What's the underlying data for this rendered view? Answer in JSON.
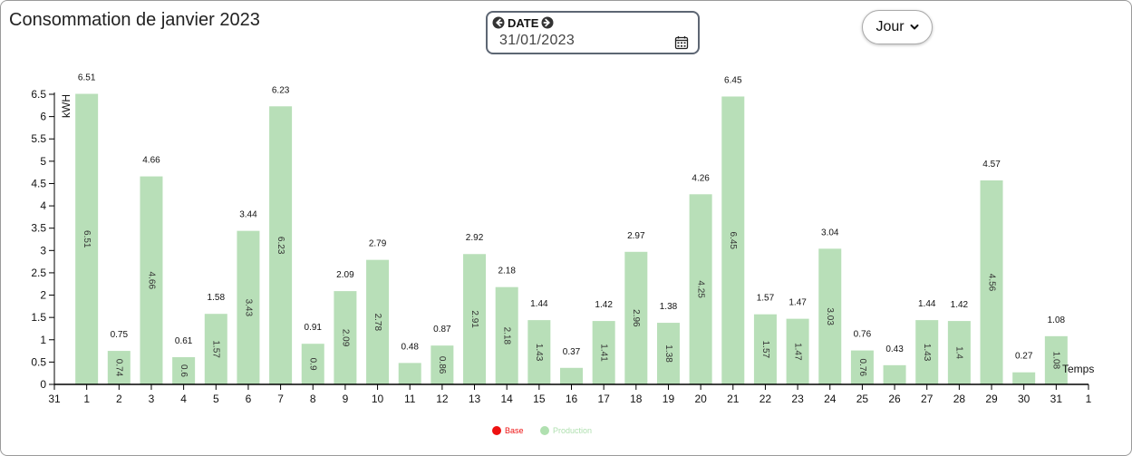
{
  "header": {
    "title": "Consommation de janvier 2023",
    "date_label": "DATE",
    "date_value": "31/01/2023",
    "period_label": "Jour"
  },
  "icons": {
    "prev": "arrow-left-circle-icon",
    "next": "arrow-right-circle-icon",
    "calendar": "calendar-icon",
    "dropdown": "chevron-down-icon"
  },
  "colors": {
    "bar": "#b8dfb8",
    "base": "#ee1111",
    "production_legend": "#b0e0b0"
  },
  "chart_data": {
    "type": "bar",
    "title": "",
    "ylabel": "kWH",
    "xlabel": "Temps",
    "ylim": [
      0,
      6.5
    ],
    "yticks": [
      0,
      0.5,
      1,
      1.5,
      2,
      2.5,
      3,
      3.5,
      4,
      4.5,
      5,
      5.5,
      6,
      6.5
    ],
    "x_edge_labels": [
      "31",
      "1"
    ],
    "categories": [
      "1",
      "2",
      "3",
      "4",
      "5",
      "6",
      "7",
      "8",
      "9",
      "10",
      "11",
      "12",
      "13",
      "14",
      "15",
      "16",
      "17",
      "18",
      "19",
      "20",
      "21",
      "22",
      "23",
      "24",
      "25",
      "26",
      "27",
      "28",
      "29",
      "30",
      "31"
    ],
    "series": [
      {
        "name": "Base",
        "values": [
          6.51,
          0.75,
          4.66,
          0.61,
          1.58,
          3.44,
          6.23,
          0.91,
          2.09,
          2.79,
          0.48,
          0.87,
          2.92,
          2.18,
          1.44,
          0.37,
          1.42,
          2.97,
          1.38,
          4.26,
          6.45,
          1.57,
          1.47,
          3.04,
          0.76,
          0.43,
          1.44,
          1.42,
          4.57,
          0.27,
          1.08
        ]
      },
      {
        "name": "Production",
        "values": [
          6.51,
          0.74,
          4.66,
          0.6,
          1.57,
          3.43,
          6.23,
          0.9,
          2.09,
          2.78,
          null,
          0.86,
          2.91,
          2.18,
          1.43,
          null,
          1.41,
          2.96,
          1.38,
          4.25,
          6.45,
          1.57,
          1.47,
          3.03,
          0.76,
          null,
          1.43,
          1.4,
          4.56,
          null,
          1.08
        ]
      }
    ],
    "grid": false,
    "legend": "bottom-center"
  }
}
